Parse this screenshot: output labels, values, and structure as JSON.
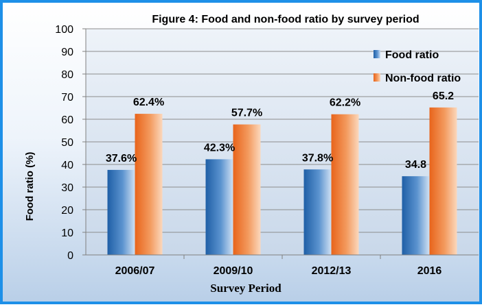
{
  "chart_data": {
    "type": "bar",
    "title": "Figure 4: Food and non-food ratio by survey period",
    "xlabel": "Survey Period",
    "ylabel": "Food ratio (%)",
    "ylim": [
      0,
      100
    ],
    "yticks": [
      "0",
      "10",
      "20",
      "30",
      "40",
      "50",
      "60",
      "70",
      "80",
      "90",
      "100"
    ],
    "grid": true,
    "legend_position": "top-right",
    "categories": [
      "2006/07",
      "2009/10",
      "2012/13",
      "2016"
    ],
    "series": [
      {
        "name": "Food ratio",
        "values": [
          37.6,
          42.3,
          37.8,
          34.8
        ],
        "labels": [
          "37.6%",
          "42.3%",
          "37.8%",
          "34.8"
        ],
        "color": "#2e6fb5"
      },
      {
        "name": "Non-food ratio",
        "values": [
          62.4,
          57.7,
          62.2,
          65.2
        ],
        "labels": [
          "62.4%",
          "57.7%",
          "62.2%",
          "65.2"
        ],
        "color": "#ee7b2c"
      }
    ]
  },
  "colors": {
    "border": "#1e90e8",
    "plot_background": "#d6e2f0",
    "grid": "#8c8c8c"
  }
}
